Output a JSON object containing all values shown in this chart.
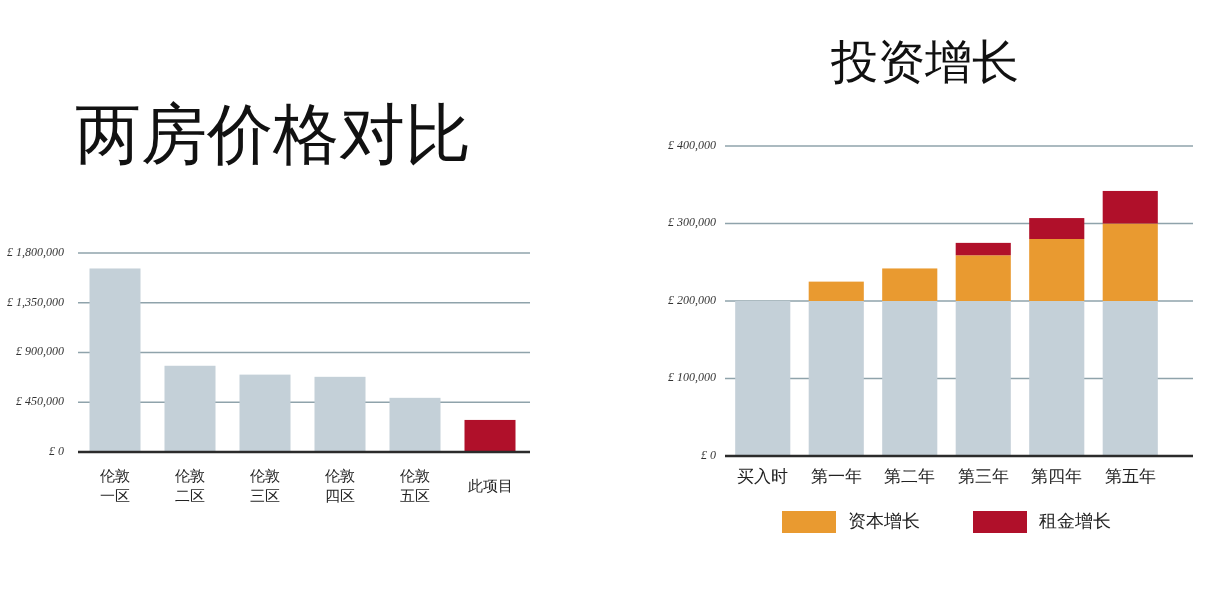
{
  "chart_data": [
    {
      "type": "bar",
      "title": "两房价格对比",
      "categories": [
        "伦敦一区",
        "伦敦二区",
        "伦敦三区",
        "伦敦四区",
        "伦敦五区",
        "此项目"
      ],
      "values": [
        1660000,
        780000,
        700000,
        680000,
        490000,
        290000
      ],
      "colors": [
        "#c4d0d8",
        "#c4d0d8",
        "#c4d0d8",
        "#c4d0d8",
        "#c4d0d8",
        "#b0102a"
      ],
      "ylim": [
        0,
        1800000
      ],
      "yticks": [
        {
          "value": 0,
          "label": "£ 0"
        },
        {
          "value": 450000,
          "label": "£ 450,000"
        },
        {
          "value": 900000,
          "label": "£ 900,000"
        },
        {
          "value": 1350000,
          "label": "£ 1,350,000"
        },
        {
          "value": 1800000,
          "label": "£ 1,800,000"
        }
      ],
      "grid": "y"
    },
    {
      "type": "bar",
      "title": "投资增长",
      "categories": [
        "买入时",
        "第一年",
        "第二年",
        "第三年",
        "第四年",
        "第五年"
      ],
      "stacked": true,
      "series": [
        {
          "color": "#c4d0d8",
          "values": [
            200000,
            200000,
            200000,
            200000,
            200000,
            200000
          ]
        },
        {
          "name": "资本增长",
          "color": "#e99a30",
          "values": [
            null,
            25000,
            42000,
            59000,
            80000,
            100000
          ]
        },
        {
          "name": "租金增长",
          "color": "#b0102a",
          "values": [
            null,
            null,
            null,
            16000,
            27000,
            42000
          ]
        }
      ],
      "ylim": [
        0,
        400000
      ],
      "yticks": [
        {
          "value": 0,
          "label": "£ 0"
        },
        {
          "value": 100000,
          "label": "£ 100,000"
        },
        {
          "value": 200000,
          "label": "£ 200,000"
        },
        {
          "value": 300000,
          "label": "£ 300,000"
        },
        {
          "value": 400000,
          "label": "£ 400,000"
        }
      ],
      "grid": "y",
      "legend": "bottom"
    }
  ]
}
